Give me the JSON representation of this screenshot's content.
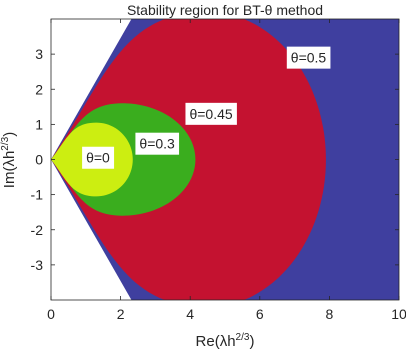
{
  "chart_data": {
    "type": "area",
    "title": "Stability region for BT-θ method",
    "xlabel": "Re(λh",
    "xlabel_sup": "2/3",
    "xlabel_tail": ")",
    "ylabel": "Im(λh",
    "ylabel_sup": "2/3",
    "ylabel_tail": ")",
    "xlim": [
      0,
      10
    ],
    "ylim": [
      -4,
      4
    ],
    "xticks": [
      0,
      2,
      4,
      6,
      8,
      10
    ],
    "xtick_labels": [
      "0",
      "2",
      "4",
      "6",
      "8",
      "10"
    ],
    "yticks": [
      3,
      2,
      1,
      0,
      -1,
      -2,
      -3
    ],
    "ytick_labels": [
      "3",
      "2",
      "1",
      "0",
      "-1",
      "-2",
      "-3"
    ],
    "grid": false,
    "regions": [
      {
        "label": "θ=0.5",
        "color": "#3f3f9f",
        "shape": "wedge",
        "apex": [
          0,
          0
        ],
        "slope": 1.73
      },
      {
        "label": "θ=0.45",
        "color": "#c41230",
        "shape": "bulb",
        "apex": [
          0,
          0
        ],
        "right": 7.9,
        "center_x": 4.5,
        "half_height": 4.2
      },
      {
        "label": "θ=0.3",
        "color": "#3aad1e",
        "shape": "bulb",
        "apex": [
          0,
          0
        ],
        "right": 4.15,
        "center_x": 2.05,
        "half_height": 1.6
      },
      {
        "label": "θ=0",
        "color": "#ccee11",
        "shape": "bulb",
        "apex": [
          0,
          0
        ],
        "right": 2.35,
        "center_x": 1.3,
        "half_height": 1.05
      }
    ],
    "annotations": [
      {
        "text": "θ=0.5",
        "x": 7.4,
        "y": 2.9
      },
      {
        "text": "θ=0.45",
        "x": 4.6,
        "y": 1.3
      },
      {
        "text": "θ=0.3",
        "x": 3.05,
        "y": 0.45
      },
      {
        "text": "θ=0",
        "x": 1.35,
        "y": 0.05
      }
    ]
  }
}
